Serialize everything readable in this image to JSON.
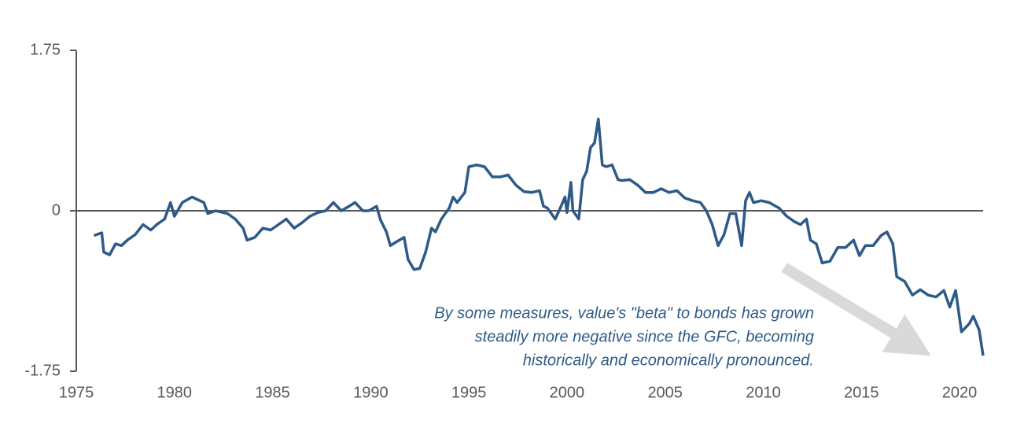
{
  "chart_data": {
    "type": "line",
    "x": [
      1975.9,
      1976.3,
      1976.4,
      1976.7,
      1977.0,
      1977.3,
      1977.6,
      1978.0,
      1978.4,
      1978.8,
      1979.1,
      1979.5,
      1979.8,
      1980.0,
      1980.4,
      1980.9,
      1981.5,
      1981.7,
      1982.1,
      1982.7,
      1983.1,
      1983.5,
      1983.7,
      1984.1,
      1984.5,
      1984.9,
      1985.3,
      1985.7,
      1986.1,
      1986.5,
      1986.9,
      1987.3,
      1987.7,
      1988.1,
      1988.5,
      1988.9,
      1989.2,
      1989.6,
      1989.9,
      1990.3,
      1990.5,
      1990.8,
      1991.0,
      1991.3,
      1991.7,
      1991.9,
      1992.2,
      1992.5,
      1992.8,
      1993.1,
      1993.3,
      1993.6,
      1994.0,
      1994.2,
      1994.4,
      1994.8,
      1995.0,
      1995.4,
      1995.8,
      1996.2,
      1996.6,
      1997.0,
      1997.4,
      1997.8,
      1998.2,
      1998.6,
      1998.8,
      1999.0,
      1999.4,
      1999.6,
      1999.9,
      2000.0,
      2000.2,
      2000.3,
      2000.6,
      2000.8,
      2001.0,
      2001.2,
      2001.4,
      2001.6,
      2001.8,
      2002.0,
      2002.3,
      2002.6,
      2002.8,
      2003.2,
      2003.6,
      2004.0,
      2004.4,
      2004.8,
      2005.2,
      2005.6,
      2006.0,
      2006.4,
      2006.8,
      2007.1,
      2007.4,
      2007.7,
      2008.0,
      2008.3,
      2008.6,
      2008.9,
      2009.1,
      2009.3,
      2009.5,
      2009.9,
      2010.3,
      2010.8,
      2011.2,
      2011.6,
      2011.9,
      2012.2,
      2012.4,
      2012.7,
      2013.0,
      2013.4,
      2013.8,
      2014.2,
      2014.6,
      2014.9,
      2015.2,
      2015.6,
      2016.0,
      2016.3,
      2016.6,
      2016.8,
      2017.2,
      2017.6,
      2018.0,
      2018.4,
      2018.8,
      2019.2,
      2019.5,
      2019.8,
      2020.1,
      2020.5,
      2020.7,
      2021.0,
      2021.2
    ],
    "series": [
      {
        "color": "#2e5a87",
        "values": [
          -0.27,
          -0.24,
          -0.45,
          -0.48,
          -0.36,
          -0.38,
          -0.32,
          -0.26,
          -0.15,
          -0.21,
          -0.15,
          -0.09,
          0.09,
          -0.06,
          0.09,
          0.15,
          0.09,
          -0.03,
          0,
          -0.03,
          -0.09,
          -0.19,
          -0.32,
          -0.29,
          -0.19,
          -0.21,
          -0.15,
          -0.09,
          -0.19,
          -0.13,
          -0.06,
          -0.02,
          0,
          0.09,
          0,
          0.05,
          0.09,
          0,
          0,
          0.05,
          -0.1,
          -0.23,
          -0.38,
          -0.34,
          -0.29,
          -0.53,
          -0.64,
          -0.63,
          -0.45,
          -0.19,
          -0.23,
          -0.09,
          0.03,
          0.15,
          0.09,
          0.2,
          0.48,
          0.5,
          0.48,
          0.37,
          0.37,
          0.39,
          0.28,
          0.21,
          0.2,
          0.22,
          0.05,
          0.03,
          -0.09,
          0,
          0.15,
          -0.02,
          0.31,
          0,
          -0.09,
          0.34,
          0.43,
          0.69,
          0.74,
          1.0,
          0.5,
          0.48,
          0.5,
          0.34,
          0.33,
          0.34,
          0.28,
          0.2,
          0.2,
          0.24,
          0.2,
          0.22,
          0.14,
          0.11,
          0.09,
          0,
          -0.15,
          -0.38,
          -0.26,
          -0.03,
          -0.03,
          -0.38,
          0.11,
          0.2,
          0.09,
          0.11,
          0.09,
          0.03,
          -0.06,
          -0.12,
          -0.15,
          -0.09,
          -0.32,
          -0.36,
          -0.57,
          -0.55,
          -0.4,
          -0.4,
          -0.32,
          -0.49,
          -0.38,
          -0.38,
          -0.27,
          -0.23,
          -0.36,
          -0.72,
          -0.77,
          -0.92,
          -0.86,
          -0.92,
          -0.94,
          -0.87,
          -1.05,
          -0.87,
          -1.32,
          -1.23,
          -1.15,
          -1.3,
          -1.58
        ]
      }
    ],
    "xlim": [
      1975,
      2021.2
    ],
    "xticks": [
      1975,
      1980,
      1985,
      1990,
      1995,
      2000,
      2005,
      2010,
      2015,
      2020
    ],
    "ylim": [
      -1.75,
      1.75
    ],
    "yticks": [
      1.75,
      0,
      -1.75
    ],
    "annotation": [
      "By some measures, value's \"beta\" to bonds has grown",
      "steadily more negative since the GFC, becoming",
      "historically and economically pronounced."
    ]
  }
}
